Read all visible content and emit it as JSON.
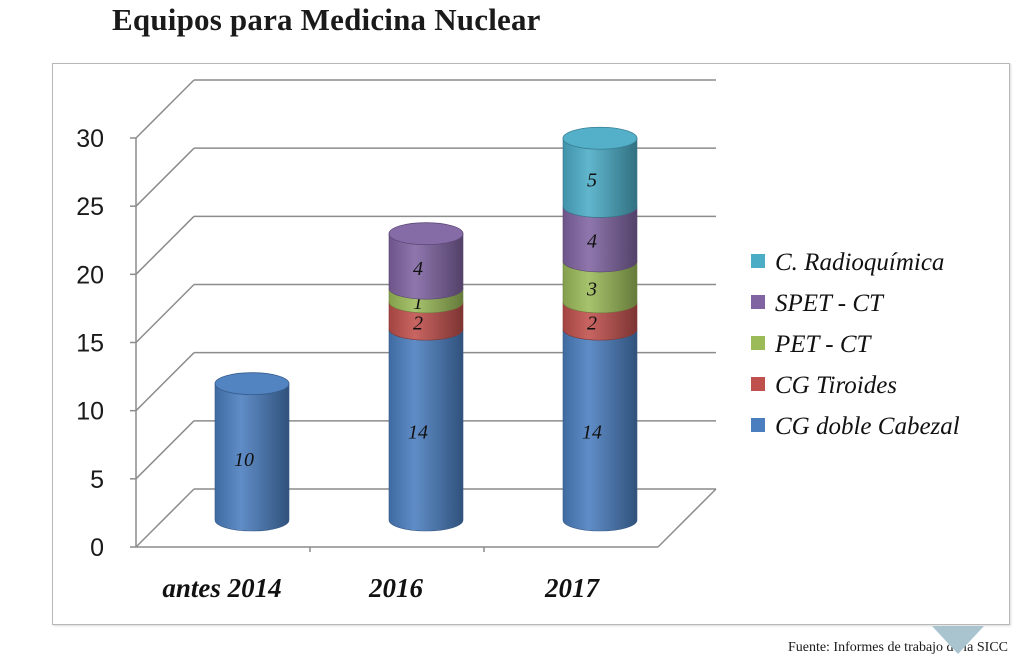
{
  "title": "Equipos para Medicina Nuclear",
  "source": "Fuente: Informes  de trabajo de la SICC",
  "chart_data": {
    "type": "bar",
    "stacked": true,
    "style": "3d-cylinder",
    "categories": [
      "antes 2014",
      "2016",
      "2017"
    ],
    "series": [
      {
        "name": "CG doble Cabezal",
        "color": "#4a7ebf",
        "values": [
          10,
          14,
          14
        ]
      },
      {
        "name": "CG Tiroides",
        "color": "#c0504d",
        "values": [
          0,
          2,
          2
        ]
      },
      {
        "name": "PET - CT",
        "color": "#9bbb59",
        "values": [
          0,
          1,
          3
        ]
      },
      {
        "name": "SPET - CT",
        "color": "#8064a2",
        "values": [
          0,
          4,
          4
        ]
      },
      {
        "name": "C. Radioquímica",
        "color": "#4bacc6",
        "values": [
          0,
          0,
          5
        ]
      }
    ],
    "ylim": [
      0,
      30
    ],
    "yticks": [
      "0",
      "5",
      "10",
      "15",
      "20",
      "25",
      "30"
    ],
    "xlabel": "",
    "ylabel": "",
    "grid": true,
    "legend": "right"
  }
}
